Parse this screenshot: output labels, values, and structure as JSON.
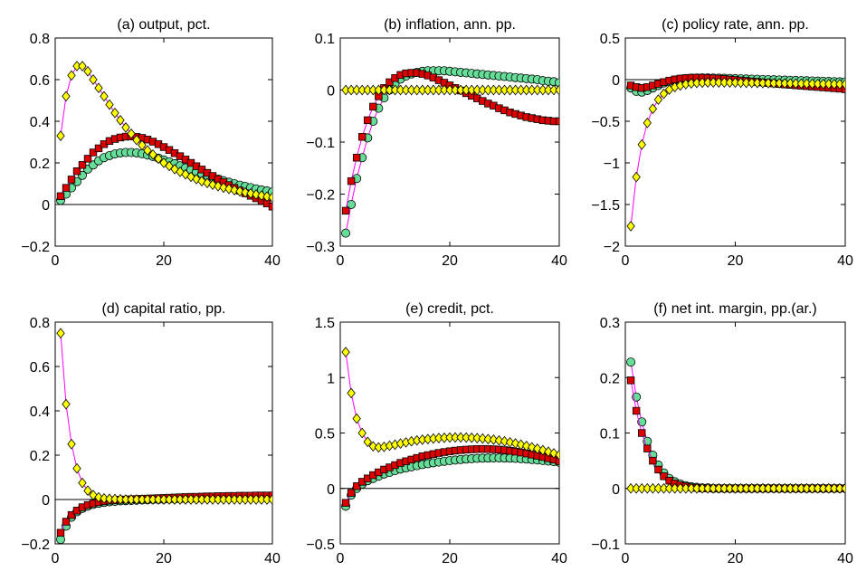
{
  "chart_data": [
    {
      "type": "line",
      "title": "(a) output, pct.",
      "xlabel": "",
      "ylabel": "",
      "xlim": [
        0,
        40
      ],
      "ylim": [
        -0.2,
        0.8
      ],
      "xticks": [
        "0",
        "20",
        "40"
      ],
      "yticks": [
        "-0.2",
        "0",
        "0.2",
        "0.4",
        "0.6",
        "0.8"
      ],
      "zero_line": true,
      "series": [
        {
          "marker": "circle",
          "color": "#66dd99",
          "values": [
            0.02,
            0.05,
            0.08,
            0.11,
            0.14,
            0.17,
            0.19,
            0.21,
            0.225,
            0.235,
            0.243,
            0.248,
            0.25,
            0.25,
            0.248,
            0.244,
            0.238,
            0.231,
            0.223,
            0.214,
            0.205,
            0.196,
            0.186,
            0.176,
            0.167,
            0.157,
            0.148,
            0.139,
            0.131,
            0.122,
            0.114,
            0.107,
            0.1,
            0.093,
            0.087,
            0.081,
            0.075,
            0.07,
            0.065,
            0.06
          ]
        },
        {
          "marker": "square",
          "color": "#dd0000",
          "values": [
            0.04,
            0.08,
            0.12,
            0.16,
            0.19,
            0.22,
            0.25,
            0.27,
            0.29,
            0.305,
            0.315,
            0.322,
            0.326,
            0.327,
            0.325,
            0.32,
            0.312,
            0.302,
            0.29,
            0.276,
            0.262,
            0.247,
            0.232,
            0.216,
            0.2,
            0.184,
            0.168,
            0.152,
            0.137,
            0.122,
            0.107,
            0.093,
            0.08,
            0.067,
            0.054,
            0.042,
            0.03,
            0.018,
            0.005,
            -0.01
          ]
        },
        {
          "marker": "diamond",
          "color": "#ffff00",
          "values": [
            0.33,
            0.52,
            0.62,
            0.665,
            0.665,
            0.64,
            0.6,
            0.56,
            0.52,
            0.48,
            0.44,
            0.405,
            0.37,
            0.34,
            0.31,
            0.285,
            0.26,
            0.24,
            0.22,
            0.2,
            0.185,
            0.17,
            0.157,
            0.145,
            0.133,
            0.122,
            0.112,
            0.103,
            0.095,
            0.088,
            0.081,
            0.075,
            0.069,
            0.063,
            0.058,
            0.053,
            0.048,
            0.043,
            0.038,
            0.034
          ]
        }
      ]
    },
    {
      "type": "line",
      "title": "(b) inflation, ann. pp.",
      "xlabel": "",
      "ylabel": "",
      "xlim": [
        0,
        40
      ],
      "ylim": [
        -0.3,
        0.1
      ],
      "xticks": [
        "0",
        "20",
        "40"
      ],
      "yticks": [
        "-0.3",
        "-0.2",
        "-0.1",
        "0",
        "0.1"
      ],
      "zero_line": true,
      "series": [
        {
          "marker": "circle",
          "color": "#66dd99",
          "values": [
            -0.275,
            -0.22,
            -0.17,
            -0.13,
            -0.092,
            -0.06,
            -0.035,
            -0.015,
            0.0,
            0.012,
            0.021,
            0.027,
            0.031,
            0.034,
            0.036,
            0.037,
            0.037,
            0.037,
            0.037,
            0.036,
            0.035,
            0.034,
            0.033,
            0.032,
            0.031,
            0.03,
            0.029,
            0.028,
            0.027,
            0.026,
            0.025,
            0.024,
            0.023,
            0.022,
            0.021,
            0.02,
            0.018,
            0.017,
            0.016,
            0.014
          ]
        },
        {
          "marker": "square",
          "color": "#dd0000",
          "values": [
            -0.232,
            -0.175,
            -0.13,
            -0.09,
            -0.058,
            -0.032,
            -0.012,
            0.004,
            0.015,
            0.023,
            0.029,
            0.032,
            0.033,
            0.033,
            0.031,
            0.028,
            0.024,
            0.019,
            0.014,
            0.009,
            0.004,
            -0.001,
            -0.006,
            -0.011,
            -0.016,
            -0.021,
            -0.026,
            -0.03,
            -0.035,
            -0.039,
            -0.043,
            -0.046,
            -0.049,
            -0.052,
            -0.054,
            -0.056,
            -0.058,
            -0.059,
            -0.06,
            -0.06
          ]
        },
        {
          "marker": "diamond",
          "color": "#ffff00",
          "values": [
            0,
            0,
            0,
            0,
            0,
            0,
            0,
            0,
            0,
            0,
            0,
            0,
            0,
            0,
            0,
            0,
            0,
            0,
            0,
            0,
            0,
            0,
            0,
            0,
            0,
            0,
            0,
            0,
            0,
            0,
            0,
            0,
            0,
            0,
            0,
            0,
            0,
            0,
            0,
            0
          ]
        }
      ]
    },
    {
      "type": "line",
      "title": "(c) policy rate, ann. pp.",
      "xlabel": "",
      "ylabel": "",
      "xlim": [
        0,
        40
      ],
      "ylim": [
        -2,
        0.5
      ],
      "xticks": [
        "0",
        "20",
        "40"
      ],
      "yticks": [
        "-2",
        "-1.5",
        "-1",
        "-0.5",
        "0",
        "0.5"
      ],
      "zero_line": true,
      "series": [
        {
          "marker": "circle",
          "color": "#66dd99",
          "values": [
            -0.1,
            -0.14,
            -0.15,
            -0.13,
            -0.1,
            -0.07,
            -0.04,
            -0.02,
            -0.005,
            0.005,
            0.012,
            0.017,
            0.019,
            0.02,
            0.02,
            0.019,
            0.018,
            0.016,
            0.014,
            0.012,
            0.01,
            0.008,
            0.006,
            0.004,
            0.002,
            0.0,
            -0.002,
            -0.004,
            -0.006,
            -0.008,
            -0.01,
            -0.012,
            -0.014,
            -0.016,
            -0.018,
            -0.02,
            -0.022,
            -0.024,
            -0.026,
            -0.028
          ]
        },
        {
          "marker": "square",
          "color": "#dd0000",
          "values": [
            -0.07,
            -0.09,
            -0.1,
            -0.09,
            -0.07,
            -0.05,
            -0.03,
            -0.012,
            0.002,
            0.012,
            0.018,
            0.022,
            0.023,
            0.022,
            0.02,
            0.016,
            0.012,
            0.007,
            0.002,
            -0.004,
            -0.01,
            -0.016,
            -0.022,
            -0.028,
            -0.034,
            -0.04,
            -0.046,
            -0.052,
            -0.058,
            -0.063,
            -0.068,
            -0.073,
            -0.078,
            -0.083,
            -0.088,
            -0.093,
            -0.098,
            -0.103,
            -0.108,
            -0.115
          ]
        },
        {
          "marker": "diamond",
          "color": "#ffff00",
          "values": [
            -1.76,
            -1.17,
            -0.78,
            -0.52,
            -0.35,
            -0.24,
            -0.17,
            -0.12,
            -0.09,
            -0.07,
            -0.055,
            -0.045,
            -0.04,
            -0.037,
            -0.035,
            -0.034,
            -0.034,
            -0.034,
            -0.035,
            -0.036,
            -0.037,
            -0.038,
            -0.039,
            -0.04,
            -0.041,
            -0.042,
            -0.043,
            -0.044,
            -0.045,
            -0.046,
            -0.047,
            -0.048,
            -0.049,
            -0.05,
            -0.051,
            -0.052,
            -0.053,
            -0.054,
            -0.055,
            -0.055
          ]
        }
      ]
    },
    {
      "type": "line",
      "title": "(d) capital ratio, pp.",
      "xlabel": "",
      "ylabel": "",
      "xlim": [
        0,
        40
      ],
      "ylim": [
        -0.2,
        0.8
      ],
      "xticks": [
        "0",
        "20",
        "40"
      ],
      "yticks": [
        "-0.2",
        "0",
        "0.2",
        "0.4",
        "0.6",
        "0.8"
      ],
      "zero_line": true,
      "series": [
        {
          "marker": "circle",
          "color": "#66dd99",
          "values": [
            -0.18,
            -0.12,
            -0.08,
            -0.055,
            -0.04,
            -0.03,
            -0.022,
            -0.017,
            -0.013,
            -0.01,
            -0.008,
            -0.006,
            -0.005,
            -0.004,
            -0.003,
            -0.002,
            -0.001,
            0.0,
            0.0,
            0.001,
            0.002,
            0.002,
            0.003,
            0.003,
            0.004,
            0.004,
            0.005,
            0.005,
            0.006,
            0.006,
            0.007,
            0.007,
            0.007,
            0.008,
            0.008,
            0.008,
            0.009,
            0.009,
            0.009,
            0.01
          ]
        },
        {
          "marker": "square",
          "color": "#dd0000",
          "values": [
            -0.15,
            -0.1,
            -0.07,
            -0.05,
            -0.035,
            -0.025,
            -0.018,
            -0.012,
            -0.008,
            -0.005,
            -0.003,
            -0.001,
            0.0,
            0.001,
            0.002,
            0.003,
            0.004,
            0.005,
            0.006,
            0.007,
            0.008,
            0.009,
            0.01,
            0.011,
            0.012,
            0.012,
            0.013,
            0.014,
            0.014,
            0.015,
            0.015,
            0.016,
            0.016,
            0.017,
            0.017,
            0.017,
            0.018,
            0.018,
            0.018,
            0.018
          ]
        },
        {
          "marker": "diamond",
          "color": "#ffff00",
          "values": [
            0.75,
            0.43,
            0.25,
            0.14,
            0.075,
            0.04,
            0.02,
            0.01,
            0.005,
            0.003,
            0.002,
            0.001,
            0.0,
            0.0,
            0.0,
            0.0,
            0.0,
            0.0,
            0.0,
            0.0,
            0.0,
            0.0,
            0.0,
            0.0,
            0.0,
            0.0,
            0.0,
            0.0,
            0.0,
            0.0,
            0.0,
            0.0,
            0.0,
            0.0,
            0.0,
            0.0,
            0.0,
            0.0,
            0.0,
            0.0
          ]
        }
      ]
    },
    {
      "type": "line",
      "title": "(e) credit, pct.",
      "xlabel": "",
      "ylabel": "",
      "xlim": [
        0,
        40
      ],
      "ylim": [
        -0.5,
        1.5
      ],
      "xticks": [
        "0",
        "20",
        "40"
      ],
      "yticks": [
        "-0.5",
        "0",
        "0.5",
        "1",
        "1.5"
      ],
      "zero_line": true,
      "series": [
        {
          "marker": "circle",
          "color": "#66dd99",
          "values": [
            -0.16,
            -0.06,
            0.0,
            0.04,
            0.07,
            0.09,
            0.11,
            0.13,
            0.145,
            0.16,
            0.175,
            0.185,
            0.195,
            0.205,
            0.215,
            0.223,
            0.231,
            0.238,
            0.245,
            0.251,
            0.256,
            0.261,
            0.265,
            0.268,
            0.271,
            0.273,
            0.274,
            0.275,
            0.275,
            0.274,
            0.273,
            0.271,
            0.268,
            0.265,
            0.261,
            0.257,
            0.252,
            0.247,
            0.242,
            0.236
          ]
        },
        {
          "marker": "square",
          "color": "#dd0000",
          "values": [
            -0.13,
            -0.04,
            0.02,
            0.06,
            0.09,
            0.12,
            0.145,
            0.17,
            0.19,
            0.21,
            0.23,
            0.245,
            0.26,
            0.275,
            0.29,
            0.3,
            0.31,
            0.32,
            0.328,
            0.335,
            0.341,
            0.346,
            0.35,
            0.353,
            0.355,
            0.356,
            0.355,
            0.353,
            0.35,
            0.345,
            0.339,
            0.332,
            0.324,
            0.315,
            0.305,
            0.295,
            0.284,
            0.272,
            0.26,
            0.245
          ]
        },
        {
          "marker": "diamond",
          "color": "#ffff00",
          "values": [
            1.23,
            0.86,
            0.63,
            0.5,
            0.42,
            0.38,
            0.37,
            0.375,
            0.385,
            0.395,
            0.405,
            0.415,
            0.425,
            0.433,
            0.44,
            0.445,
            0.45,
            0.454,
            0.457,
            0.459,
            0.46,
            0.46,
            0.459,
            0.457,
            0.454,
            0.45,
            0.445,
            0.44,
            0.433,
            0.425,
            0.416,
            0.406,
            0.395,
            0.383,
            0.371,
            0.358,
            0.345,
            0.331,
            0.317,
            0.303
          ]
        }
      ]
    },
    {
      "type": "line",
      "title": "(f) net int. margin, pp.(ar.)",
      "xlabel": "",
      "ylabel": "",
      "xlim": [
        0,
        40
      ],
      "ylim": [
        -0.1,
        0.3
      ],
      "xticks": [
        "0",
        "20",
        "40"
      ],
      "yticks": [
        "-0.1",
        "0",
        "0.1",
        "0.2",
        "0.3"
      ],
      "zero_line": true,
      "series": [
        {
          "marker": "circle",
          "color": "#66dd99",
          "values": [
            0.228,
            0.165,
            0.12,
            0.085,
            0.06,
            0.042,
            0.028,
            0.018,
            0.012,
            0.008,
            0.005,
            0.003,
            0.002,
            0.001,
            0.001,
            0.0,
            0.0,
            0.0,
            0.0,
            0.0,
            0.0,
            0.0,
            0.0,
            0.0,
            0.0,
            0.0,
            0.0,
            0.0,
            0.0,
            0.0,
            0.0,
            0.0,
            0.0,
            0.0,
            0.0,
            0.0,
            0.0,
            0.0,
            0.0,
            0.0
          ]
        },
        {
          "marker": "square",
          "color": "#dd0000",
          "values": [
            0.195,
            0.14,
            0.1,
            0.072,
            0.05,
            0.034,
            0.022,
            0.014,
            0.009,
            0.006,
            0.004,
            0.002,
            0.001,
            0.0,
            0.0,
            0.0,
            0.0,
            0.0,
            0.0,
            0.0,
            0.0,
            0.0,
            0.0,
            0.0,
            0.0,
            0.0,
            0.0,
            0.0,
            0.0,
            0.0,
            0.0,
            0.0,
            0.0,
            0.0,
            0.0,
            0.0,
            0.0,
            0.0,
            0.0,
            0.0
          ]
        },
        {
          "marker": "diamond",
          "color": "#ffff00",
          "values": [
            0,
            0,
            0,
            0,
            0,
            0,
            0,
            0,
            0,
            0,
            0,
            0,
            0,
            0,
            0,
            0,
            0,
            0,
            0,
            0,
            0,
            0,
            0,
            0,
            0,
            0,
            0,
            0,
            0,
            0,
            0,
            0,
            0,
            0,
            0,
            0,
            0,
            0,
            0,
            0
          ]
        }
      ]
    }
  ]
}
